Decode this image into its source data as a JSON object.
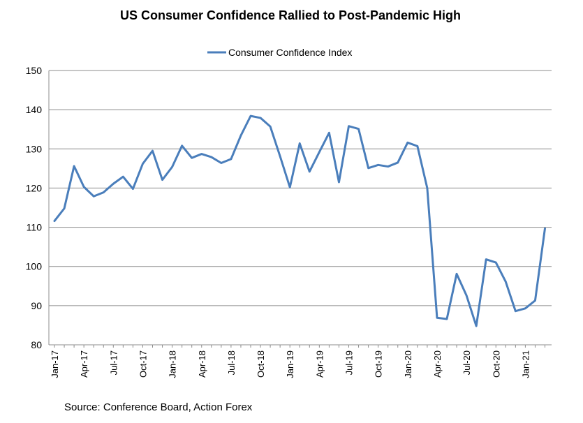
{
  "chart_data": {
    "type": "line",
    "title": "US Consumer Confidence Rallied to Post-Pandemic High",
    "xlabel": "",
    "ylabel": "",
    "ylim": [
      80,
      150
    ],
    "yticks": [
      80,
      90,
      100,
      110,
      120,
      130,
      140,
      150
    ],
    "grid": true,
    "legend_position": "top-center",
    "x": [
      "Jan-17",
      "Feb-17",
      "Mar-17",
      "Apr-17",
      "May-17",
      "Jun-17",
      "Jul-17",
      "Aug-17",
      "Sep-17",
      "Oct-17",
      "Nov-17",
      "Dec-17",
      "Jan-18",
      "Feb-18",
      "Mar-18",
      "Apr-18",
      "May-18",
      "Jun-18",
      "Jul-18",
      "Aug-18",
      "Sep-18",
      "Oct-18",
      "Nov-18",
      "Dec-18",
      "Jan-19",
      "Feb-19",
      "Mar-19",
      "Apr-19",
      "May-19",
      "Jun-19",
      "Jul-19",
      "Aug-19",
      "Sep-19",
      "Oct-19",
      "Nov-19",
      "Dec-19",
      "Jan-20",
      "Feb-20",
      "Mar-20",
      "Apr-20",
      "May-20",
      "Jun-20",
      "Jul-20",
      "Aug-20",
      "Sep-20",
      "Oct-20",
      "Nov-20",
      "Dec-20",
      "Jan-21",
      "Feb-21",
      "Mar-21"
    ],
    "tick_labels": [
      "Jan-17",
      "Apr-17",
      "Jul-17",
      "Oct-17",
      "Jan-18",
      "Apr-18",
      "Jul-18",
      "Oct-18",
      "Jan-19",
      "Apr-19",
      "Jul-19",
      "Oct-19",
      "Jan-20",
      "Apr-20",
      "Jul-20",
      "Oct-20",
      "Jan-21"
    ],
    "series": [
      {
        "name": "Consumer Confidence Index",
        "color": "#4a7ebb",
        "values": [
          111.6,
          114.8,
          125.6,
          120.3,
          117.9,
          118.9,
          121.1,
          122.9,
          119.8,
          126.2,
          129.5,
          122.1,
          125.4,
          130.8,
          127.7,
          128.7,
          127.9,
          126.4,
          127.4,
          133.4,
          138.4,
          137.9,
          135.7,
          128.1,
          120.2,
          131.4,
          124.2,
          129.2,
          134.1,
          121.5,
          135.8,
          135.1,
          125.1,
          125.9,
          125.5,
          126.5,
          131.6,
          130.7,
          120.0,
          86.9,
          86.6,
          98.1,
          92.6,
          84.8,
          101.8,
          101.0,
          96.1,
          88.6,
          89.3,
          91.3,
          109.7
        ]
      }
    ]
  },
  "source": "Source: Conference Board, Action Forex"
}
